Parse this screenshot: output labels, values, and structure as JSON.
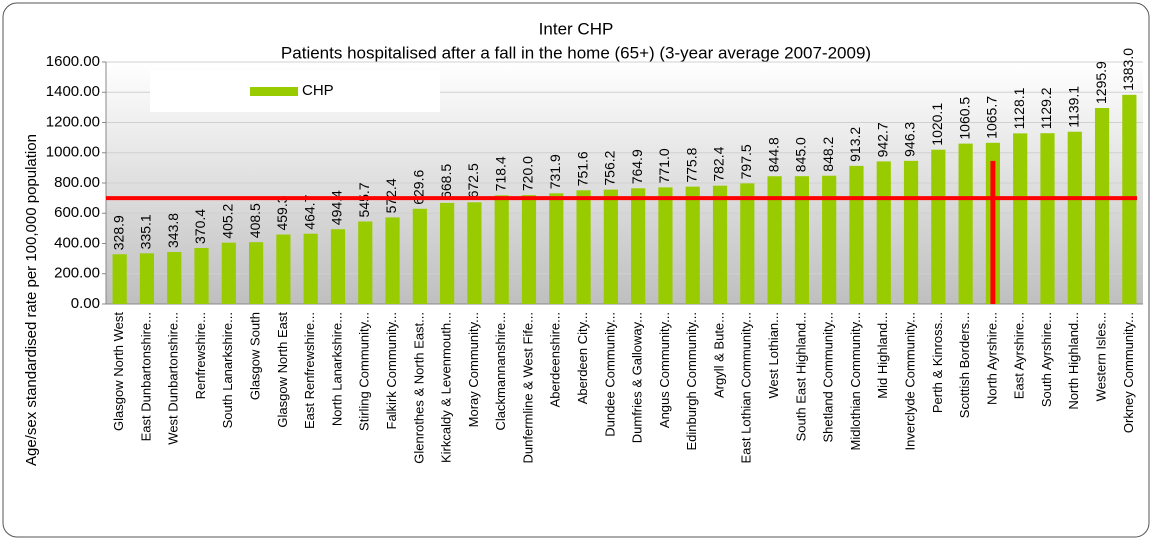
{
  "chart_data": {
    "type": "bar",
    "title": "Inter CHP",
    "subtitle": "Patients hospitalised after a fall in the home (65+) (3-year average 2007-2009)",
    "ylabel": "Age/sex standardised rate per 100,000 population",
    "categories": [
      "Glasgow North West",
      "East Dunbartonshire...",
      "West Dunbartonshire...",
      "Renfrewshire...",
      "South Lanarkshire...",
      "Glasgow South",
      "Glasgow North East",
      "East Renfrewshire...",
      "North Lanarkshire...",
      "Stirling Community...",
      "Falkirk Community...",
      "Glenrothes & North East...",
      "Kirkcaldy & Levenmouth...",
      "Moray Community...",
      "Clackmannanshire...",
      "Dunfermline & West Fife...",
      "Aberdeenshire...",
      "Aberdeen City...",
      "Dundee Community...",
      "Dumfries & Galloway...",
      "Angus Community...",
      "Edinburgh Community...",
      "Argyll & Bute...",
      "East Lothian Community...",
      "West Lothian...",
      "South East Highland...",
      "Shetland Community...",
      "Midlothian Community...",
      "Mid Highland...",
      "Inverclyde Community...",
      "Perth & Kinross...",
      "Scottish Borders...",
      "North Ayrshire...",
      "East Ayrshire...",
      "South Ayrshire...",
      "North Highland...",
      "Western Isles...",
      "Orkney Community..."
    ],
    "series": [
      {
        "name": "CHP",
        "color": "#99cc00",
        "values": [
          328.9,
          335.1,
          343.8,
          370.4,
          405.2,
          408.5,
          459.3,
          464.7,
          494.4,
          545.7,
          572.4,
          629.6,
          668.5,
          672.5,
          718.4,
          720.0,
          731.9,
          751.6,
          756.2,
          764.9,
          771.0,
          775.8,
          782.4,
          797.5,
          844.8,
          845.0,
          848.2,
          913.2,
          942.7,
          946.3,
          1020.1,
          1060.5,
          1065.7,
          1128.1,
          1129.2,
          1139.1,
          1295.9,
          1383.0
        ],
        "value_labels": [
          "328.9",
          "335.1",
          "343.8",
          "370.4",
          "405.2",
          "408.5",
          "459.3",
          "464.7",
          "494.4",
          "545.7",
          "572.4",
          "629.6",
          "668.5",
          "672.5",
          "718.4",
          "720.0",
          "731.9",
          "751.6",
          "756.2",
          "764.9",
          "771.0",
          "775.8",
          "782.4",
          "797.5",
          "844.8",
          "845.0",
          "848.2",
          "913.2",
          "942.7",
          "946.3",
          "1020.1",
          "1060.5",
          "1065.7",
          "1128.1",
          "1129.2",
          "1139.1",
          "1295.9",
          "1383.0"
        ]
      }
    ],
    "ylim": [
      0,
      1600
    ],
    "yticks": [
      {
        "value": 0,
        "label": "0.00"
      },
      {
        "value": 200,
        "label": "200.00"
      },
      {
        "value": 400,
        "label": "400.00"
      },
      {
        "value": 600,
        "label": "600.00"
      },
      {
        "value": 800,
        "label": "800.00"
      },
      {
        "value": 1000,
        "label": "1000.00"
      },
      {
        "value": 1200,
        "label": "1200.00"
      },
      {
        "value": 1400,
        "label": "1400.00"
      },
      {
        "value": 1600,
        "label": "1600.00"
      }
    ],
    "grid": true,
    "legend": "top-left",
    "reference_line": {
      "value": 700,
      "color": "#ff0000"
    },
    "highlight": {
      "index": 32,
      "color": "#ff0000"
    }
  }
}
